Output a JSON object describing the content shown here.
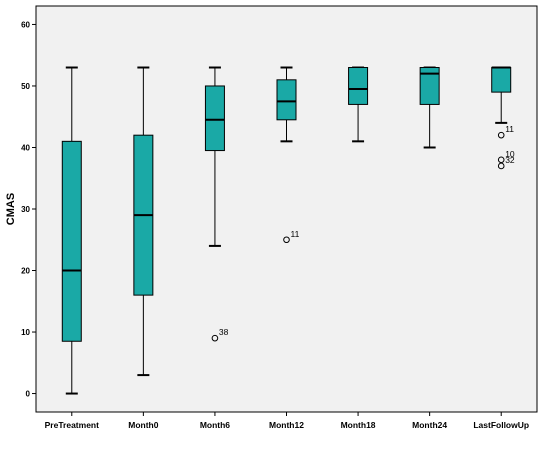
{
  "chart_data": {
    "type": "boxplot",
    "title": "",
    "xlabel": "",
    "ylabel": "CMAS",
    "ylim": [
      -3,
      63
    ],
    "yticks": [
      0,
      10,
      20,
      30,
      40,
      50,
      60
    ],
    "grid": false,
    "box_color": "#1aa9a6",
    "plot_background": "#f1f1f1",
    "categories": [
      "PreTreatment",
      "Month0",
      "Month6",
      "Month12",
      "Month18",
      "Month24",
      "LastFollowUp"
    ],
    "boxes": [
      {
        "category": "PreTreatment",
        "whisker_low": 0,
        "q1": 8.5,
        "median": 20,
        "q3": 41,
        "whisker_high": 53,
        "outliers": []
      },
      {
        "category": "Month0",
        "whisker_low": 3,
        "q1": 16,
        "median": 29,
        "q3": 42,
        "whisker_high": 53,
        "outliers": []
      },
      {
        "category": "Month6",
        "whisker_low": 24,
        "q1": 39.5,
        "median": 44.5,
        "q3": 50,
        "whisker_high": 53,
        "outliers": [
          {
            "value": 9,
            "label": "38"
          }
        ]
      },
      {
        "category": "Month12",
        "whisker_low": 41,
        "q1": 44.5,
        "median": 47.5,
        "q3": 51,
        "whisker_high": 53,
        "outliers": [
          {
            "value": 25,
            "label": "11"
          }
        ]
      },
      {
        "category": "Month18",
        "whisker_low": 41,
        "q1": 47,
        "median": 49.5,
        "q3": 53,
        "whisker_high": 53,
        "outliers": []
      },
      {
        "category": "Month24",
        "whisker_low": 40,
        "q1": 47,
        "median": 52,
        "q3": 53,
        "whisker_high": 53,
        "outliers": []
      },
      {
        "category": "LastFollowUp",
        "whisker_low": 44,
        "q1": 49,
        "median": 53,
        "q3": 53,
        "whisker_high": 53,
        "outliers": [
          {
            "value": 42,
            "label": "11"
          },
          {
            "value": 38,
            "label": "10"
          },
          {
            "value": 37,
            "label": "32"
          }
        ]
      }
    ]
  }
}
